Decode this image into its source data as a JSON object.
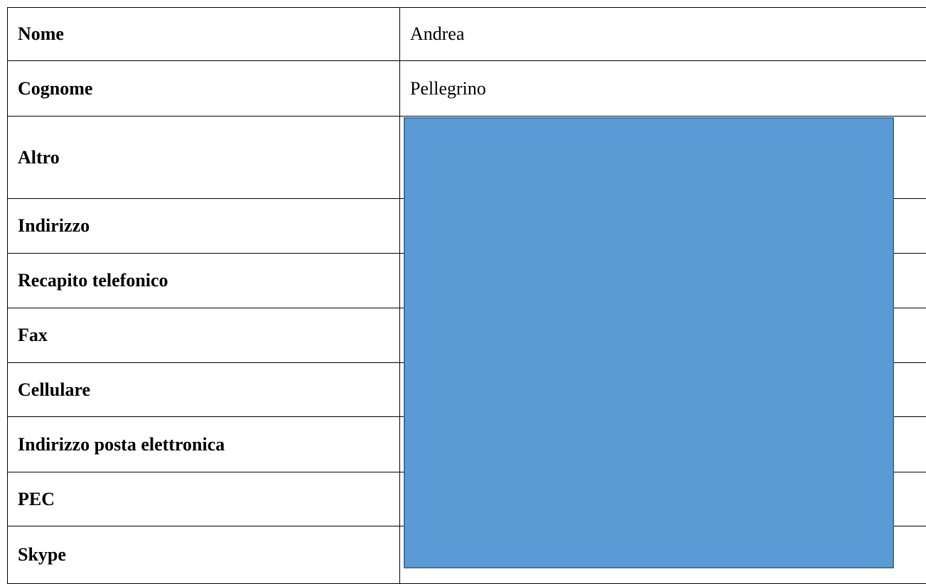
{
  "rows": [
    {
      "label": "Nome",
      "value": "Andrea"
    },
    {
      "label": "Cognome",
      "value": "Pellegrino"
    },
    {
      "label": "Altro",
      "value": ""
    },
    {
      "label": "Indirizzo",
      "value": ""
    },
    {
      "label": "Recapito telefonico",
      "value": ""
    },
    {
      "label": "Fax",
      "value": ""
    },
    {
      "label": "Cellulare",
      "value": ""
    },
    {
      "label": "Indirizzo posta elettronica",
      "value": ""
    },
    {
      "label": "PEC",
      "value": ""
    },
    {
      "label": "Skype",
      "value": ""
    }
  ],
  "colors": {
    "redaction_fill": "#5b9bd5",
    "redaction_border": "#41719c"
  }
}
